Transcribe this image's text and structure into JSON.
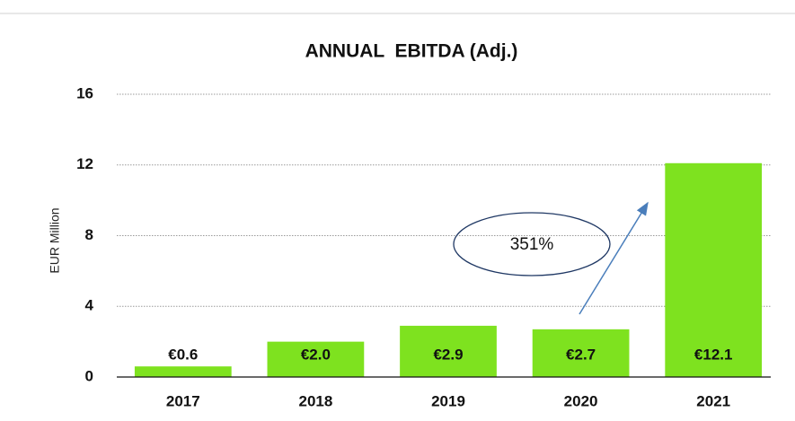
{
  "chart_data": {
    "type": "bar",
    "title": "ANNUAL  EBITDA (Adj.)",
    "y_label": "EUR Million",
    "categories": [
      "2017",
      "2018",
      "2019",
      "2020",
      "2021"
    ],
    "values": [
      0.6,
      2.0,
      2.9,
      2.7,
      12.1
    ],
    "value_labels": [
      "€0.6",
      "€2.0",
      "€2.9",
      "€2.7",
      "€12.1"
    ],
    "color": "#7ee21f",
    "ylim": [
      0,
      16
    ],
    "yticks": [
      0,
      4,
      8,
      12,
      16
    ],
    "grid": true,
    "annotation": "351%"
  }
}
